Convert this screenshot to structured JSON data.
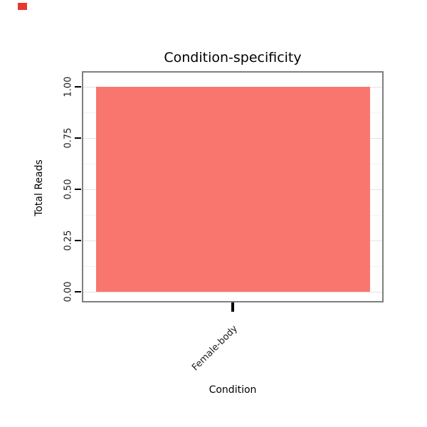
{
  "chart_data": {
    "type": "bar",
    "title": "Condition-specificity",
    "xlabel": "Condition",
    "ylabel": "Total Reads",
    "categories": [
      "Female-body"
    ],
    "values": [
      1.0
    ],
    "ylim": [
      0,
      1
    ],
    "yticks": [
      0.0,
      0.25,
      0.5,
      0.75,
      1.0
    ],
    "ytick_labels": [
      "0.00",
      "0.25",
      "0.50",
      "0.75",
      "1.00"
    ],
    "grid": "minimal (faint major/minor lines on white panel)",
    "legend_position": "none",
    "bar_color": "#F8766D",
    "panel_border_color": "#7F7F7F",
    "tick_color": "#000000",
    "corner_marker_color": "#E8392F"
  }
}
